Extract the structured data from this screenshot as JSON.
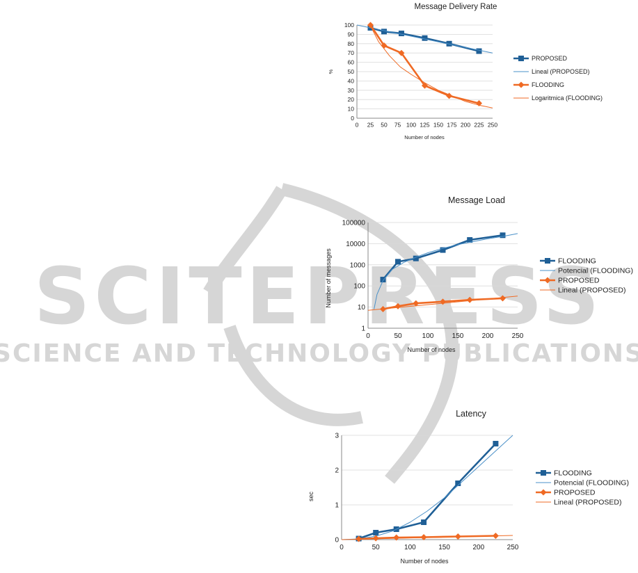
{
  "watermark": {
    "main": "SCITEPRESS",
    "sub": "SCIENCE AND TECHNOLOGY PUBLICATIONS"
  },
  "colors": {
    "blue": "#1f5f96",
    "blueThin": "#4a90c8",
    "orange": "#ef6a24",
    "grid": "#d9d9d9",
    "watermark": "#d6d6d6"
  },
  "chart_data": [
    {
      "type": "line",
      "title": "Message Delivery Rate",
      "xlabel": "Number of nodes",
      "ylabel": "%",
      "xlim": [
        0,
        250
      ],
      "ylim": [
        0,
        100
      ],
      "xticks": [
        0,
        25,
        50,
        75,
        100,
        125,
        150,
        175,
        200,
        225,
        250
      ],
      "yticks": [
        0,
        10,
        20,
        30,
        40,
        50,
        60,
        70,
        80,
        90,
        100
      ],
      "yscale": "linear",
      "grid": true,
      "legend_position": "right",
      "series": [
        {
          "name": "PROPOSED",
          "color": "#1f5f96",
          "marker": "square",
          "x": [
            25,
            50,
            82,
            125,
            170,
            225
          ],
          "y": [
            97,
            93,
            91,
            86,
            80,
            72
          ]
        },
        {
          "name": "Lineal (PROPOSED)",
          "color": "#4a90c8",
          "trend": "linear",
          "x": [
            0,
            250
          ],
          "y": [
            100,
            70
          ]
        },
        {
          "name": "FLOODING",
          "color": "#ef6a24",
          "marker": "diamond",
          "x": [
            25,
            50,
            82,
            125,
            170,
            225
          ],
          "y": [
            100,
            78,
            70,
            35,
            24,
            16
          ]
        },
        {
          "name": "Logaritmica (FLOODING)",
          "color": "#ef6a24",
          "trend": "log",
          "x": [
            25,
            40,
            60,
            80,
            100,
            125,
            150,
            175,
            200,
            225,
            250
          ],
          "y": [
            99,
            82,
            67,
            55,
            47,
            38,
            30,
            24,
            18,
            14,
            11
          ]
        }
      ]
    },
    {
      "type": "line",
      "title": "Message Load",
      "xlabel": "Number of nodes",
      "ylabel": "Number of messages",
      "xlim": [
        0,
        250
      ],
      "ylim": [
        1,
        100000
      ],
      "xticks": [
        0,
        50,
        100,
        150,
        200,
        250
      ],
      "yticks": [
        1,
        10,
        100,
        1000,
        10000,
        100000
      ],
      "yscale": "log",
      "grid": true,
      "legend_position": "right",
      "series": [
        {
          "name": "FLOODING",
          "color": "#1f5f96",
          "marker": "square",
          "x": [
            25,
            50,
            80,
            125,
            170,
            225
          ],
          "y": [
            200,
            1400,
            2000,
            5000,
            15000,
            25000
          ]
        },
        {
          "name": "Potencial (FLOODING)",
          "color": "#4a90c8",
          "trend": "power",
          "x": [
            10,
            15,
            25,
            40,
            60,
            80,
            100,
            125,
            150,
            175,
            200,
            225,
            250
          ],
          "y": [
            8,
            40,
            180,
            600,
            1300,
            2300,
            3700,
            6000,
            9000,
            12500,
            17000,
            22000,
            30000
          ]
        },
        {
          "name": "PROPOSED",
          "color": "#ef6a24",
          "marker": "diamond",
          "x": [
            25,
            50,
            80,
            125,
            170,
            225
          ],
          "y": [
            8,
            11,
            15,
            18,
            22,
            26
          ]
        },
        {
          "name": "Lineal (PROPOSED)",
          "color": "#ef6a24",
          "trend": "linear",
          "x": [
            0,
            250
          ],
          "y": [
            7,
            33
          ]
        }
      ]
    },
    {
      "type": "line",
      "title": "Latency",
      "xlabel": "Number of nodes",
      "ylabel": "sec",
      "xlim": [
        0,
        250
      ],
      "ylim": [
        0,
        3
      ],
      "xticks": [
        0,
        50,
        100,
        150,
        200,
        250
      ],
      "yticks": [
        0,
        1,
        2,
        3
      ],
      "yscale": "linear",
      "grid": true,
      "legend_position": "right",
      "series": [
        {
          "name": "FLOODING",
          "color": "#1f5f96",
          "marker": "square",
          "x": [
            25,
            50,
            80,
            120,
            170,
            225
          ],
          "y": [
            0.03,
            0.2,
            0.3,
            0.5,
            1.62,
            2.76
          ]
        },
        {
          "name": "Potencial (FLOODING)",
          "color": "#4a90c8",
          "trend": "power",
          "x": [
            0,
            25,
            50,
            75,
            100,
            125,
            150,
            175,
            200,
            225,
            250
          ],
          "y": [
            0,
            0.02,
            0.1,
            0.25,
            0.5,
            0.82,
            1.2,
            1.65,
            2.1,
            2.55,
            3.0
          ]
        },
        {
          "name": "PROPOSED",
          "color": "#ef6a24",
          "marker": "diamond",
          "x": [
            25,
            50,
            80,
            120,
            170,
            225
          ],
          "y": [
            0.02,
            0.04,
            0.06,
            0.07,
            0.09,
            0.11
          ]
        },
        {
          "name": "Lineal (PROPOSED)",
          "color": "#ef6a24",
          "trend": "linear",
          "x": [
            0,
            250
          ],
          "y": [
            0.0,
            0.12
          ]
        }
      ]
    }
  ]
}
